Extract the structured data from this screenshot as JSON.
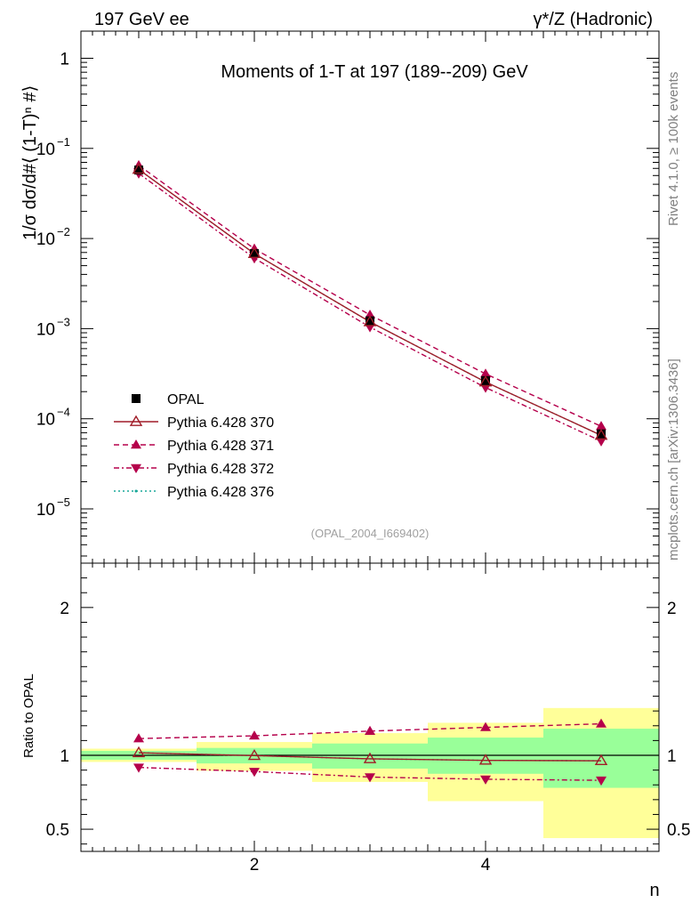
{
  "header": {
    "left": "197 GeV ee",
    "right": "γ*/Z (Hadronic)"
  },
  "side": {
    "rivet": "Rivet 4.1.0, ≥ 100k events",
    "mcplots": "mcplots.cern.ch [arXiv:1306.3436]"
  },
  "chart_data": [
    {
      "type": "line",
      "title": "Moments of 1-T at 197 (189--209) GeV",
      "watermark": "(OPAL_2004_I669402)",
      "ylabel": "1/σ  dσ/d#⟨ (1-T)ⁿ #⟩",
      "xlabel": "n",
      "yscale": "log",
      "ylim": [
        2.5e-06,
        2
      ],
      "xlim": [
        0.5,
        5.5
      ],
      "yticks": [
        {
          "v": 1,
          "base": "1",
          "exp": ""
        },
        {
          "v": 0.1,
          "base": "10",
          "exp": "−1"
        },
        {
          "v": 0.01,
          "base": "10",
          "exp": "−2"
        },
        {
          "v": 0.001,
          "base": "10",
          "exp": "−3"
        },
        {
          "v": 0.0001,
          "base": "10",
          "exp": "−4"
        },
        {
          "v": 1e-05,
          "base": "10",
          "exp": "−5"
        }
      ],
      "x": [
        1,
        2,
        3,
        4,
        5
      ],
      "series": [
        {
          "name": "OPAL",
          "values": [
            0.0575,
            0.0068,
            0.00122,
            0.000265,
            6.8e-05
          ],
          "color": "#000000",
          "marker": "square",
          "dash": ""
        },
        {
          "name": "Pythia 6.428 370",
          "values": [
            0.0585,
            0.0068,
            0.00119,
            0.000256,
            6.55e-05
          ],
          "color": "#a01c28",
          "marker": "triangle-open",
          "dash": ""
        },
        {
          "name": "Pythia 6.428 371",
          "values": [
            0.0648,
            0.0077,
            0.00142,
            0.000315,
            8.25e-05
          ],
          "color": "#b5004b",
          "marker": "triangle",
          "dash": "6,4"
        },
        {
          "name": "Pythia 6.428 372",
          "values": [
            0.0528,
            0.00605,
            0.00104,
            0.000222,
            5.65e-05
          ],
          "color": "#b5004b",
          "marker": "triangle-down",
          "dash": "6,3,2,3"
        },
        {
          "name": "Pythia 6.428 376",
          "values": [
            0.0585,
            0.0068,
            0.00119,
            0.000256,
            6.55e-05
          ],
          "color": "#1aa89a",
          "marker": "none",
          "dash": "2,3"
        }
      ]
    },
    {
      "type": "line",
      "ylabel": "Ratio to OPAL",
      "xlabel": "n",
      "ylim": [
        0.35,
        2.3
      ],
      "xlim": [
        0.5,
        5.5
      ],
      "yticks": [
        {
          "v": 0.5,
          "label": "0.5"
        },
        {
          "v": 1,
          "label": "1"
        },
        {
          "v": 2,
          "label": "2"
        }
      ],
      "xticks": [
        {
          "v": 2,
          "label": "2"
        },
        {
          "v": 4,
          "label": "4"
        }
      ],
      "x": [
        1,
        2,
        3,
        4,
        5
      ],
      "bands": {
        "yellow": [
          [
            0.955,
            1.045
          ],
          [
            0.895,
            1.09
          ],
          [
            0.82,
            1.15
          ],
          [
            0.69,
            1.22
          ],
          [
            0.44,
            1.32
          ]
        ],
        "green": [
          [
            0.97,
            1.03
          ],
          [
            0.945,
            1.05
          ],
          [
            0.91,
            1.08
          ],
          [
            0.875,
            1.12
          ],
          [
            0.78,
            1.18
          ]
        ]
      },
      "series": [
        {
          "name": "Pythia 6.428 370",
          "values": [
            1.017,
            0.998,
            0.976,
            0.966,
            0.963
          ],
          "color": "#a01c28",
          "marker": "triangle-open",
          "dash": ""
        },
        {
          "name": "Pythia 6.428 371",
          "values": [
            1.113,
            1.132,
            1.164,
            1.189,
            1.213
          ],
          "color": "#b5004b",
          "marker": "triangle",
          "dash": "6,4"
        },
        {
          "name": "Pythia 6.428 372",
          "values": [
            0.918,
            0.89,
            0.853,
            0.838,
            0.831
          ],
          "color": "#b5004b",
          "marker": "triangle-down",
          "dash": "6,3,2,3"
        },
        {
          "name": "Pythia 6.428 376",
          "values": [
            1.017,
            0.998,
            0.976,
            0.966,
            0.963
          ],
          "color": "#1aa89a",
          "marker": "none",
          "dash": "2,3"
        }
      ]
    }
  ]
}
